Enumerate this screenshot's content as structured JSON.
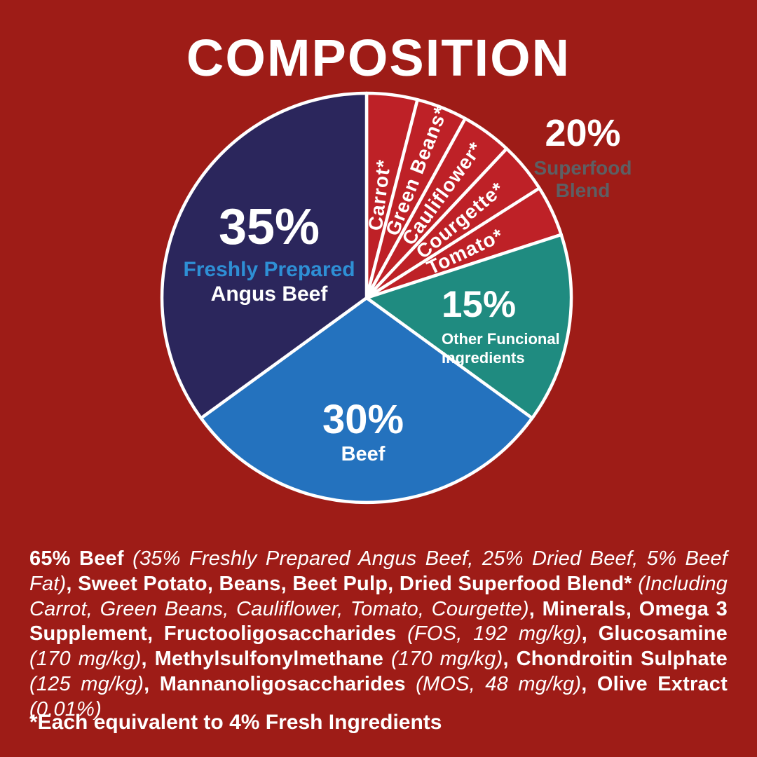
{
  "title": "COMPOSITION",
  "colors": {
    "background": "#9E1C17",
    "wedge_red": "#BE2127",
    "wedge_teal": "#1F8B80",
    "wedge_blue": "#2472BE",
    "wedge_navy": "#2B265C",
    "divider_white": "#FFFFFF",
    "accent_light_blue": "#2E8FD5",
    "callout_gray": "#5D5F63"
  },
  "chart_data": {
    "type": "pie",
    "title": "COMPOSITION",
    "units": "percent",
    "start_angle": "12 o'clock, clockwise",
    "slices": [
      {
        "label": "Carrot*",
        "value": 4,
        "color": "#BE2127",
        "label_style": "radial",
        "label_color": "#FFFFFF"
      },
      {
        "label": "Green Beans*",
        "value": 4,
        "color": "#BE2127",
        "label_style": "radial",
        "label_color": "#FFFFFF"
      },
      {
        "label": "Cauliflower*",
        "value": 4,
        "color": "#BE2127",
        "label_style": "radial",
        "label_color": "#FFFFFF"
      },
      {
        "label": "Courgette*",
        "value": 4,
        "color": "#BE2127",
        "label_style": "radial",
        "label_color": "#FFFFFF"
      },
      {
        "label": "Tomato*",
        "value": 4,
        "color": "#BE2127",
        "label_style": "radial",
        "label_color": "#FFFFFF"
      },
      {
        "label": "Other Funcional Ingredients",
        "value": 15,
        "color": "#1F8B80",
        "label_style": "callout"
      },
      {
        "label": "Beef",
        "value": 30,
        "color": "#2472BE",
        "label_style": "callout"
      },
      {
        "label": "Freshly Prepared Angus Beef",
        "value": 35,
        "color": "#2B265C",
        "label_style": "callout"
      }
    ],
    "group_callout": {
      "pct": "20%",
      "label": "Superfood Blend",
      "applies_to": [
        "Carrot*",
        "Green Beans*",
        "Cauliflower*",
        "Courgette*",
        "Tomato*"
      ]
    },
    "legend_position": "labels-on-slices"
  },
  "callouts": {
    "angus": {
      "pct": "35%",
      "line1": "Freshly Prepared",
      "line2": "Angus Beef"
    },
    "beef": {
      "pct": "30%",
      "label": "Beef"
    },
    "functional": {
      "pct": "15%",
      "label": "Other Funcional Ingredients"
    },
    "superfood": {
      "pct": "20%",
      "label": "Superfood Blend"
    }
  },
  "ingredients": {
    "segments": [
      {
        "t": "65% Beef ",
        "s": "b"
      },
      {
        "t": "(35% Freshly Prepared Angus Beef, 25% Dried Beef, 5% Beef Fat)",
        "s": "i"
      },
      {
        "t": ", ",
        "s": "b"
      },
      {
        "t": "Sweet Potato, Beans, Beet Pulp, Dried Superfood Blend* ",
        "s": "b"
      },
      {
        "t": "(Including Carrot, Green Beans, Cauliflower, Tomato, Courgette)",
        "s": "i"
      },
      {
        "t": ", ",
        "s": "b"
      },
      {
        "t": "Minerals, Omega 3 Supplement, Fructooligosaccharides ",
        "s": "b"
      },
      {
        "t": "(FOS, 192 mg/kg)",
        "s": "i"
      },
      {
        "t": ", ",
        "s": "b"
      },
      {
        "t": "Glucosamine ",
        "s": "b"
      },
      {
        "t": "(170 mg/kg)",
        "s": "i"
      },
      {
        "t": ", ",
        "s": "b"
      },
      {
        "t": "Methylsulfonylmethane ",
        "s": "b"
      },
      {
        "t": "(170 mg/kg)",
        "s": "i"
      },
      {
        "t": ", ",
        "s": "b"
      },
      {
        "t": "Chondroitin Sulphate ",
        "s": "b"
      },
      {
        "t": "(125 mg/kg)",
        "s": "i"
      },
      {
        "t": ", ",
        "s": "b"
      },
      {
        "t": "Mannanoligosaccharides ",
        "s": "b"
      },
      {
        "t": "(MOS, 48 mg/kg)",
        "s": "i"
      },
      {
        "t": ", ",
        "s": "b"
      },
      {
        "t": "Olive Extract ",
        "s": "b"
      },
      {
        "t": "(0.01%)",
        "s": "i"
      }
    ]
  },
  "footnote": "*Each equivalent to 4% Fresh Ingredients"
}
